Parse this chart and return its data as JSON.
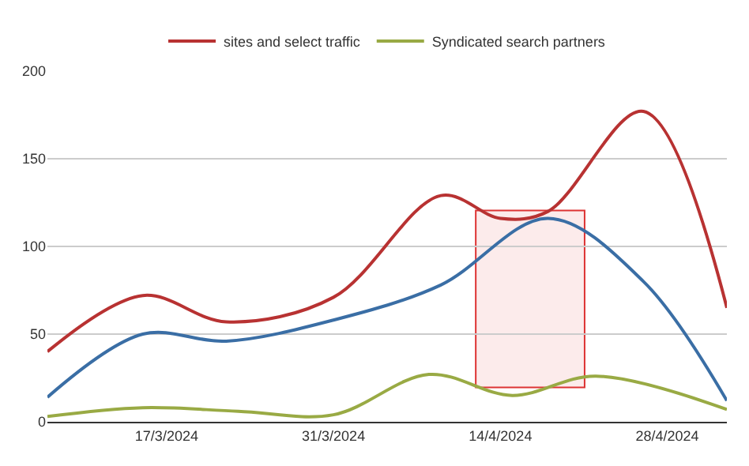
{
  "chart_data": {
    "type": "line",
    "series": [
      {
        "color": "#3a6ea5",
        "x": [
          "2024-03-07",
          "2024-03-15",
          "2024-03-22",
          "2024-03-31",
          "2024-04-09",
          "2024-04-18",
          "2024-04-26",
          "2024-05-03"
        ],
        "values": [
          14,
          50,
          46,
          58,
          78,
          116,
          80,
          12
        ]
      },
      {
        "name": "sites and select traffic",
        "color": "#b83232",
        "x": [
          "2024-03-07",
          "2024-03-15",
          "2024-03-22",
          "2024-03-31",
          "2024-04-09",
          "2024-04-14",
          "2024-04-18",
          "2024-04-26",
          "2024-05-03"
        ],
        "values": [
          40,
          72,
          57,
          71,
          129,
          116,
          120,
          177,
          65
        ]
      },
      {
        "name": "Syndicated search partners",
        "color": "#99aa44",
        "x": [
          "2024-03-07",
          "2024-03-15",
          "2024-03-23",
          "2024-03-31",
          "2024-04-08",
          "2024-04-15",
          "2024-04-22",
          "2024-05-03"
        ],
        "values": [
          3,
          8,
          6,
          4,
          27,
          15,
          26,
          7
        ]
      }
    ],
    "xlim": [
      "2024-03-07",
      "2024-05-03"
    ],
    "xticks": [
      {
        "value": "2024-03-17",
        "label": "17/3/2024"
      },
      {
        "value": "2024-03-31",
        "label": "31/3/2024"
      },
      {
        "value": "2024-04-14",
        "label": "14/4/2024"
      },
      {
        "value": "2024-04-28",
        "label": "28/4/2024"
      }
    ],
    "ylim": [
      0,
      200
    ],
    "yticks": [
      0,
      50,
      100,
      150,
      200
    ],
    "bands": [
      {
        "axis": "x",
        "from": "2024-04-12",
        "to": "2024-04-21",
        "color": "#dd3333"
      }
    ],
    "grid": "y",
    "legend": "top",
    "marker": "none",
    "line_style": "solid"
  }
}
